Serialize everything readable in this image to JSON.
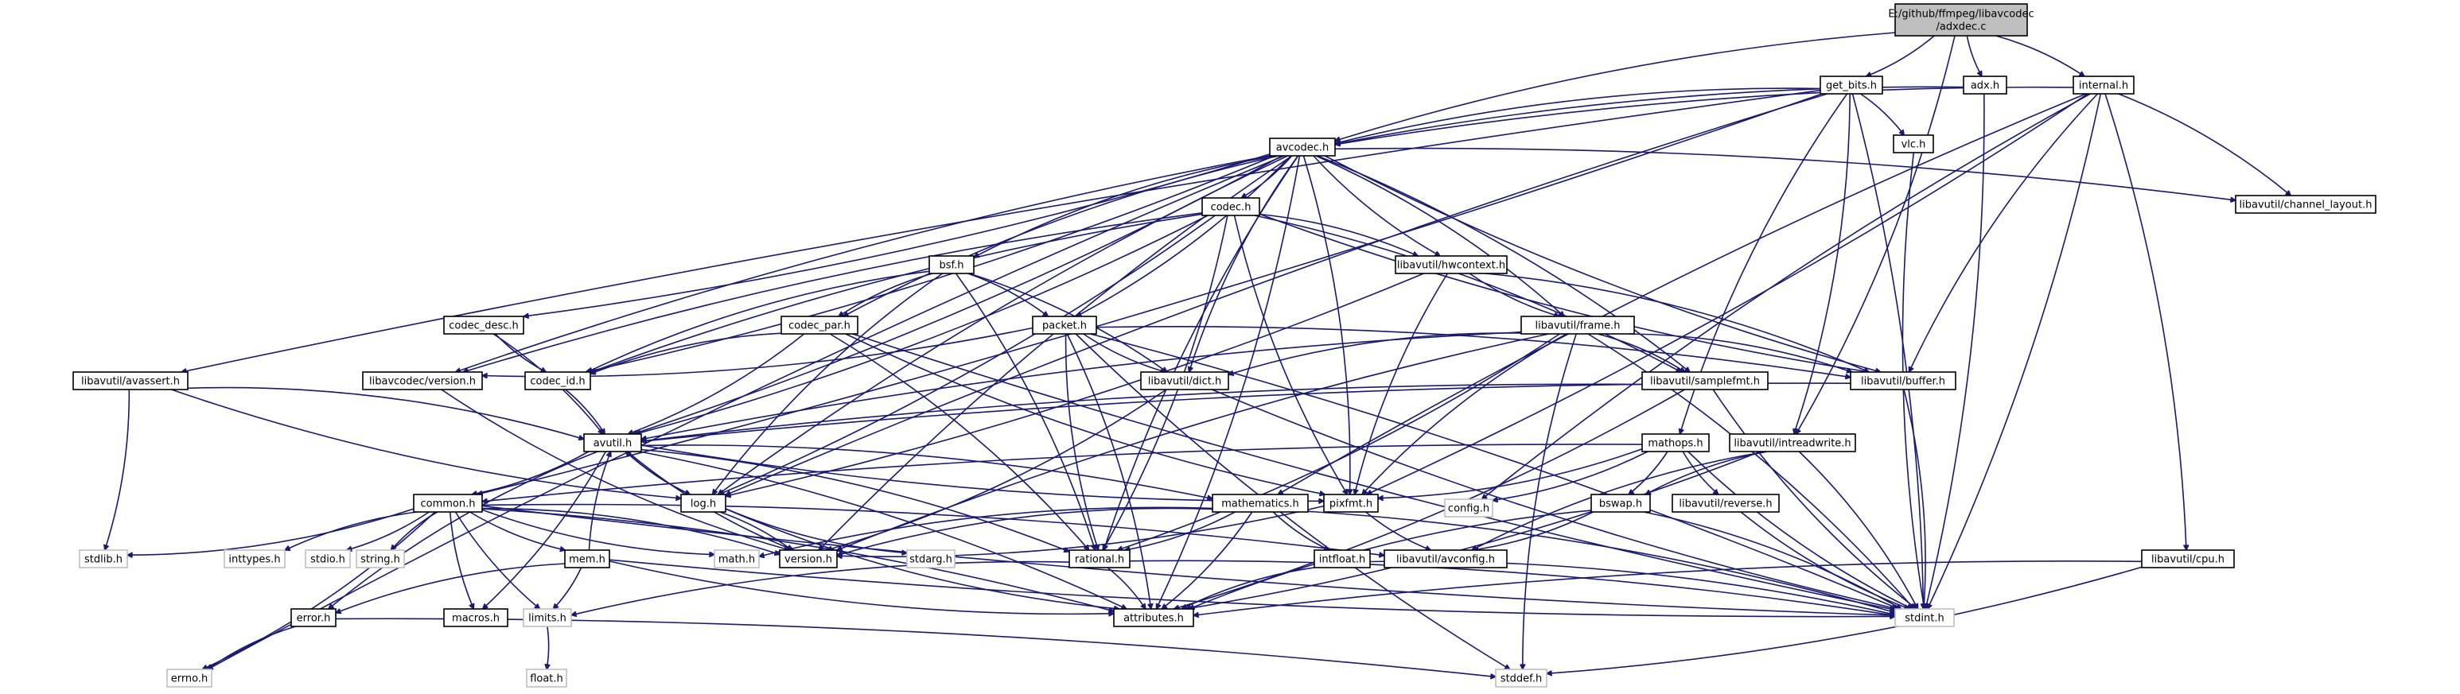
{
  "nodes": [
    {
      "id": "adxdec",
      "lines": [
        "E:/github/ffmpeg/libavcodec",
        "/adxdec.c"
      ],
      "root": true
    },
    {
      "id": "get_bits",
      "lines": [
        "get_bits.h"
      ]
    },
    {
      "id": "adx",
      "lines": [
        "adx.h"
      ]
    },
    {
      "id": "internal",
      "lines": [
        "internal.h"
      ]
    },
    {
      "id": "avcodec",
      "lines": [
        "avcodec.h"
      ]
    },
    {
      "id": "vlc",
      "lines": [
        "vlc.h"
      ]
    },
    {
      "id": "codec",
      "lines": [
        "codec.h"
      ]
    },
    {
      "id": "channel_layout",
      "lines": [
        "libavutil/channel_layout.h"
      ]
    },
    {
      "id": "bsf",
      "lines": [
        "bsf.h"
      ]
    },
    {
      "id": "hwcontext",
      "lines": [
        "libavutil/hwcontext.h"
      ]
    },
    {
      "id": "codec_desc",
      "lines": [
        "codec_desc.h"
      ]
    },
    {
      "id": "codec_par",
      "lines": [
        "codec_par.h"
      ]
    },
    {
      "id": "packet",
      "lines": [
        "packet.h"
      ]
    },
    {
      "id": "frame",
      "lines": [
        "libavutil/frame.h"
      ]
    },
    {
      "id": "avassert",
      "lines": [
        "libavutil/avassert.h"
      ]
    },
    {
      "id": "lavc_version",
      "lines": [
        "libavcodec/version.h"
      ]
    },
    {
      "id": "codec_id",
      "lines": [
        "codec_id.h"
      ]
    },
    {
      "id": "dict",
      "lines": [
        "libavutil/dict.h"
      ]
    },
    {
      "id": "samplefmt",
      "lines": [
        "libavutil/samplefmt.h"
      ]
    },
    {
      "id": "buffer",
      "lines": [
        "libavutil/buffer.h"
      ]
    },
    {
      "id": "avutil",
      "lines": [
        "avutil.h"
      ]
    },
    {
      "id": "mathops",
      "lines": [
        "mathops.h"
      ]
    },
    {
      "id": "intreadwrite",
      "lines": [
        "libavutil/intreadwrite.h"
      ]
    },
    {
      "id": "common",
      "lines": [
        "common.h"
      ]
    },
    {
      "id": "log",
      "lines": [
        "log.h"
      ]
    },
    {
      "id": "mathematics",
      "lines": [
        "mathematics.h"
      ]
    },
    {
      "id": "pixfmt",
      "lines": [
        "pixfmt.h"
      ]
    },
    {
      "id": "config",
      "lines": [
        "config.h"
      ],
      "light": true
    },
    {
      "id": "bswap",
      "lines": [
        "bswap.h"
      ]
    },
    {
      "id": "reverse",
      "lines": [
        "libavutil/reverse.h"
      ]
    },
    {
      "id": "stdlib",
      "lines": [
        "stdlib.h"
      ],
      "light": true
    },
    {
      "id": "inttypes",
      "lines": [
        "inttypes.h"
      ],
      "light": true
    },
    {
      "id": "stdio",
      "lines": [
        "stdio.h"
      ],
      "light": true
    },
    {
      "id": "string",
      "lines": [
        "string.h"
      ],
      "light": true
    },
    {
      "id": "math",
      "lines": [
        "math.h"
      ],
      "light": true
    },
    {
      "id": "version",
      "lines": [
        "version.h"
      ]
    },
    {
      "id": "stdarg",
      "lines": [
        "stdarg.h"
      ],
      "light": true
    },
    {
      "id": "rational",
      "lines": [
        "rational.h"
      ]
    },
    {
      "id": "intfloat",
      "lines": [
        "intfloat.h"
      ]
    },
    {
      "id": "avconfig",
      "lines": [
        "libavutil/avconfig.h"
      ]
    },
    {
      "id": "cpu",
      "lines": [
        "libavutil/cpu.h"
      ]
    },
    {
      "id": "mem",
      "lines": [
        "mem.h"
      ]
    },
    {
      "id": "macros",
      "lines": [
        "macros.h"
      ]
    },
    {
      "id": "limits",
      "lines": [
        "limits.h"
      ],
      "light": true
    },
    {
      "id": "attributes",
      "lines": [
        "attributes.h"
      ]
    },
    {
      "id": "stdint",
      "lines": [
        "stdint.h"
      ],
      "light": true
    },
    {
      "id": "error",
      "lines": [
        "error.h"
      ]
    },
    {
      "id": "float",
      "lines": [
        "float.h"
      ],
      "light": true
    },
    {
      "id": "errno",
      "lines": [
        "errno.h"
      ],
      "light": true
    },
    {
      "id": "stddef",
      "lines": [
        "stddef.h"
      ],
      "light": true
    }
  ],
  "edges": [
    [
      "adxdec",
      "get_bits"
    ],
    [
      "adxdec",
      "adx"
    ],
    [
      "adxdec",
      "internal"
    ],
    [
      "adxdec",
      "avcodec"
    ],
    [
      "adxdec",
      "intreadwrite"
    ],
    [
      "get_bits",
      "avcodec"
    ],
    [
      "get_bits",
      "vlc"
    ],
    [
      "get_bits",
      "mathops"
    ],
    [
      "get_bits",
      "common"
    ],
    [
      "get_bits",
      "avassert"
    ],
    [
      "get_bits",
      "intreadwrite"
    ],
    [
      "get_bits",
      "log"
    ],
    [
      "get_bits",
      "stdint"
    ],
    [
      "adx",
      "avcodec"
    ],
    [
      "adx",
      "stdint"
    ],
    [
      "internal",
      "avcodec"
    ],
    [
      "internal",
      "channel_layout"
    ],
    [
      "internal",
      "buffer"
    ],
    [
      "internal",
      "pixfmt"
    ],
    [
      "internal",
      "config"
    ],
    [
      "internal",
      "cpu"
    ],
    [
      "internal",
      "mathematics"
    ],
    [
      "internal",
      "stdint"
    ],
    [
      "vlc",
      "stdint"
    ],
    [
      "avcodec",
      "codec"
    ],
    [
      "avcodec",
      "bsf"
    ],
    [
      "avcodec",
      "codec_desc"
    ],
    [
      "avcodec",
      "codec_par"
    ],
    [
      "avcodec",
      "packet"
    ],
    [
      "avcodec",
      "hwcontext"
    ],
    [
      "avcodec",
      "frame"
    ],
    [
      "avcodec",
      "lavc_version"
    ],
    [
      "avcodec",
      "codec_id"
    ],
    [
      "avcodec",
      "dict"
    ],
    [
      "avcodec",
      "samplefmt"
    ],
    [
      "avcodec",
      "buffer"
    ],
    [
      "avcodec",
      "avutil"
    ],
    [
      "avcodec",
      "log"
    ],
    [
      "avcodec",
      "pixfmt"
    ],
    [
      "avcodec",
      "rational"
    ],
    [
      "avcodec",
      "attributes"
    ],
    [
      "avcodec",
      "version"
    ],
    [
      "avcodec",
      "channel_layout"
    ],
    [
      "avcodec",
      "errno"
    ],
    [
      "codec",
      "hwcontext"
    ],
    [
      "codec",
      "codec_id"
    ],
    [
      "codec",
      "avutil"
    ],
    [
      "codec",
      "lavc_version"
    ],
    [
      "codec",
      "samplefmt"
    ],
    [
      "codec",
      "pixfmt"
    ],
    [
      "codec",
      "rational"
    ],
    [
      "codec",
      "buffer"
    ],
    [
      "codec",
      "log"
    ],
    [
      "bsf",
      "codec_par"
    ],
    [
      "bsf",
      "packet"
    ],
    [
      "bsf",
      "codec_id"
    ],
    [
      "bsf",
      "dict"
    ],
    [
      "bsf",
      "log"
    ],
    [
      "bsf",
      "rational"
    ],
    [
      "hwcontext",
      "frame"
    ],
    [
      "hwcontext",
      "buffer"
    ],
    [
      "hwcontext",
      "pixfmt"
    ],
    [
      "hwcontext",
      "log"
    ],
    [
      "codec_desc",
      "codec_id"
    ],
    [
      "codec_desc",
      "avutil"
    ],
    [
      "codec_par",
      "codec_id"
    ],
    [
      "codec_par",
      "avutil"
    ],
    [
      "codec_par",
      "pixfmt"
    ],
    [
      "codec_par",
      "rational"
    ],
    [
      "codec_par",
      "stdint"
    ],
    [
      "packet",
      "buffer"
    ],
    [
      "packet",
      "dict"
    ],
    [
      "packet",
      "attributes"
    ],
    [
      "packet",
      "rational"
    ],
    [
      "packet",
      "lavc_version"
    ],
    [
      "packet",
      "stddef"
    ],
    [
      "packet",
      "stdint"
    ],
    [
      "frame",
      "avutil"
    ],
    [
      "frame",
      "buffer"
    ],
    [
      "frame",
      "dict"
    ],
    [
      "frame",
      "samplefmt"
    ],
    [
      "frame",
      "pixfmt"
    ],
    [
      "frame",
      "rational"
    ],
    [
      "frame",
      "version"
    ],
    [
      "frame",
      "stdint"
    ],
    [
      "frame",
      "stddef"
    ],
    [
      "avassert",
      "avutil"
    ],
    [
      "avassert",
      "log"
    ],
    [
      "avassert",
      "stdlib"
    ],
    [
      "lavc_version",
      "version"
    ],
    [
      "codec_id",
      "avutil"
    ],
    [
      "dict",
      "stdint"
    ],
    [
      "dict",
      "version"
    ],
    [
      "samplefmt",
      "avutil"
    ],
    [
      "samplefmt",
      "attributes"
    ],
    [
      "samplefmt",
      "stdint"
    ],
    [
      "buffer",
      "stdint"
    ],
    [
      "buffer",
      "avutil"
    ],
    [
      "avutil",
      "common"
    ],
    [
      "avutil",
      "log"
    ],
    [
      "avutil",
      "mathematics"
    ],
    [
      "avutil",
      "pixfmt"
    ],
    [
      "avutil",
      "rational"
    ],
    [
      "avutil",
      "version"
    ],
    [
      "avutil",
      "macros"
    ],
    [
      "avutil",
      "error"
    ],
    [
      "avutil",
      "attributes"
    ],
    [
      "mathops",
      "common"
    ],
    [
      "mathops",
      "config"
    ],
    [
      "mathops",
      "stdint"
    ],
    [
      "mathops",
      "bswap"
    ],
    [
      "mathops",
      "reverse"
    ],
    [
      "mathops",
      "pixfmt"
    ],
    [
      "intreadwrite",
      "avconfig"
    ],
    [
      "intreadwrite",
      "attributes"
    ],
    [
      "intreadwrite",
      "bswap"
    ],
    [
      "intreadwrite",
      "stdint"
    ],
    [
      "common",
      "inttypes"
    ],
    [
      "common",
      "stdio"
    ],
    [
      "common",
      "string"
    ],
    [
      "common",
      "stdlib"
    ],
    [
      "common",
      "math"
    ],
    [
      "common",
      "errno"
    ],
    [
      "common",
      "limits"
    ],
    [
      "common",
      "attributes"
    ],
    [
      "common",
      "macros"
    ],
    [
      "common",
      "version"
    ],
    [
      "common",
      "mem"
    ],
    [
      "common",
      "avconfig"
    ],
    [
      "common",
      "stdint"
    ],
    [
      "log",
      "avutil"
    ],
    [
      "log",
      "attributes"
    ],
    [
      "log",
      "version"
    ],
    [
      "log",
      "stdarg"
    ],
    [
      "mathematics",
      "rational"
    ],
    [
      "mathematics",
      "intfloat"
    ],
    [
      "mathematics",
      "attributes"
    ],
    [
      "mathematics",
      "version"
    ],
    [
      "mathematics",
      "stdint"
    ],
    [
      "mathematics",
      "math"
    ],
    [
      "pixfmt",
      "version"
    ],
    [
      "pixfmt",
      "avconfig"
    ],
    [
      "bswap",
      "avconfig"
    ],
    [
      "bswap",
      "attributes"
    ],
    [
      "bswap",
      "stdint"
    ],
    [
      "reverse",
      "stdint"
    ],
    [
      "rational",
      "attributes"
    ],
    [
      "rational",
      "limits"
    ],
    [
      "rational",
      "stdint"
    ],
    [
      "intfloat",
      "attributes"
    ],
    [
      "intfloat",
      "stdint"
    ],
    [
      "cpu",
      "attributes"
    ],
    [
      "cpu",
      "stddef"
    ],
    [
      "mem",
      "error"
    ],
    [
      "mem",
      "limits"
    ],
    [
      "mem",
      "attributes"
    ],
    [
      "mem",
      "avutil"
    ],
    [
      "mem",
      "stdint"
    ],
    [
      "limits",
      "float"
    ],
    [
      "error",
      "errno"
    ],
    [
      "error",
      "stddef"
    ]
  ]
}
